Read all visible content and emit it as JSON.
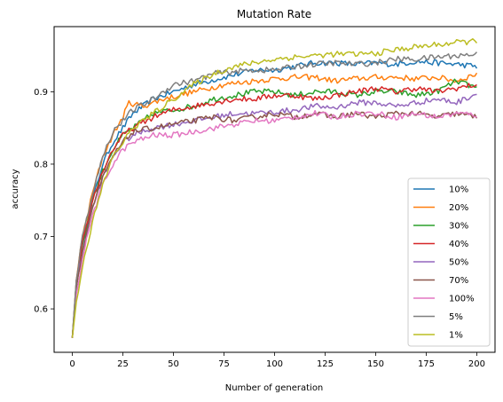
{
  "chart_data": {
    "type": "line",
    "title": "Mutation Rate",
    "xlabel": "Number of generation",
    "ylabel": "accuracy",
    "xlim": [
      -9,
      209
    ],
    "ylim": [
      0.54,
      0.99
    ],
    "xticks": [
      0,
      25,
      50,
      75,
      100,
      125,
      150,
      175,
      200
    ],
    "yticks": [
      0.6,
      0.7,
      0.8,
      0.9
    ],
    "grid": false,
    "legend_position": "lower right",
    "series": [
      {
        "name": "10%",
        "color": "#1f77b4",
        "points": [
          [
            0,
            0.56
          ],
          [
            2,
            0.64
          ],
          [
            5,
            0.69
          ],
          [
            10,
            0.75
          ],
          [
            15,
            0.8
          ],
          [
            20,
            0.83
          ],
          [
            25,
            0.85
          ],
          [
            30,
            0.87
          ],
          [
            40,
            0.89
          ],
          [
            50,
            0.9
          ],
          [
            60,
            0.91
          ],
          [
            75,
            0.92
          ],
          [
            90,
            0.93
          ],
          [
            100,
            0.93
          ],
          [
            110,
            0.935
          ],
          [
            120,
            0.94
          ],
          [
            130,
            0.94
          ],
          [
            140,
            0.938
          ],
          [
            150,
            0.94
          ],
          [
            160,
            0.938
          ],
          [
            170,
            0.942
          ],
          [
            180,
            0.94
          ],
          [
            190,
            0.938
          ],
          [
            200,
            0.935
          ]
        ]
      },
      {
        "name": "20%",
        "color": "#ff7f0e",
        "points": [
          [
            0,
            0.56
          ],
          [
            2,
            0.64
          ],
          [
            5,
            0.7
          ],
          [
            10,
            0.76
          ],
          [
            15,
            0.81
          ],
          [
            20,
            0.84
          ],
          [
            25,
            0.865
          ],
          [
            28,
            0.885
          ],
          [
            35,
            0.88
          ],
          [
            45,
            0.89
          ],
          [
            60,
            0.9
          ],
          [
            75,
            0.91
          ],
          [
            90,
            0.915
          ],
          [
            100,
            0.918
          ],
          [
            110,
            0.92
          ],
          [
            120,
            0.92
          ],
          [
            130,
            0.915
          ],
          [
            140,
            0.918
          ],
          [
            150,
            0.92
          ],
          [
            160,
            0.92
          ],
          [
            170,
            0.918
          ],
          [
            180,
            0.92
          ],
          [
            190,
            0.915
          ],
          [
            200,
            0.925
          ]
        ]
      },
      {
        "name": "30%",
        "color": "#2ca02c",
        "points": [
          [
            0,
            0.56
          ],
          [
            2,
            0.63
          ],
          [
            5,
            0.69
          ],
          [
            10,
            0.75
          ],
          [
            15,
            0.79
          ],
          [
            20,
            0.82
          ],
          [
            25,
            0.84
          ],
          [
            30,
            0.85
          ],
          [
            40,
            0.87
          ],
          [
            50,
            0.875
          ],
          [
            60,
            0.88
          ],
          [
            70,
            0.89
          ],
          [
            80,
            0.895
          ],
          [
            90,
            0.9
          ],
          [
            100,
            0.9
          ],
          [
            110,
            0.895
          ],
          [
            120,
            0.9
          ],
          [
            130,
            0.9
          ],
          [
            140,
            0.895
          ],
          [
            150,
            0.9
          ],
          [
            160,
            0.9
          ],
          [
            170,
            0.895
          ],
          [
            180,
            0.9
          ],
          [
            190,
            0.915
          ],
          [
            200,
            0.905
          ]
        ]
      },
      {
        "name": "40%",
        "color": "#d62728",
        "points": [
          [
            0,
            0.56
          ],
          [
            2,
            0.63
          ],
          [
            5,
            0.69
          ],
          [
            10,
            0.75
          ],
          [
            15,
            0.79
          ],
          [
            20,
            0.82
          ],
          [
            25,
            0.84
          ],
          [
            30,
            0.85
          ],
          [
            40,
            0.865
          ],
          [
            50,
            0.875
          ],
          [
            60,
            0.88
          ],
          [
            70,
            0.885
          ],
          [
            80,
            0.89
          ],
          [
            90,
            0.89
          ],
          [
            100,
            0.895
          ],
          [
            110,
            0.895
          ],
          [
            120,
            0.89
          ],
          [
            130,
            0.895
          ],
          [
            140,
            0.9
          ],
          [
            150,
            0.905
          ],
          [
            160,
            0.9
          ],
          [
            170,
            0.905
          ],
          [
            180,
            0.9
          ],
          [
            190,
            0.905
          ],
          [
            200,
            0.91
          ]
        ]
      },
      {
        "name": "50%",
        "color": "#9467bd",
        "points": [
          [
            0,
            0.56
          ],
          [
            2,
            0.63
          ],
          [
            5,
            0.68
          ],
          [
            10,
            0.74
          ],
          [
            15,
            0.78
          ],
          [
            20,
            0.81
          ],
          [
            25,
            0.83
          ],
          [
            30,
            0.84
          ],
          [
            40,
            0.85
          ],
          [
            50,
            0.855
          ],
          [
            60,
            0.86
          ],
          [
            70,
            0.865
          ],
          [
            80,
            0.87
          ],
          [
            90,
            0.87
          ],
          [
            100,
            0.872
          ],
          [
            110,
            0.875
          ],
          [
            120,
            0.88
          ],
          [
            130,
            0.878
          ],
          [
            140,
            0.885
          ],
          [
            150,
            0.885
          ],
          [
            160,
            0.88
          ],
          [
            170,
            0.885
          ],
          [
            180,
            0.89
          ],
          [
            190,
            0.885
          ],
          [
            200,
            0.898
          ]
        ]
      },
      {
        "name": "70%",
        "color": "#8c564b",
        "points": [
          [
            0,
            0.56
          ],
          [
            2,
            0.63
          ],
          [
            5,
            0.68
          ],
          [
            10,
            0.74
          ],
          [
            15,
            0.78
          ],
          [
            20,
            0.81
          ],
          [
            25,
            0.83
          ],
          [
            30,
            0.845
          ],
          [
            40,
            0.85
          ],
          [
            50,
            0.855
          ],
          [
            60,
            0.86
          ],
          [
            70,
            0.865
          ],
          [
            80,
            0.86
          ],
          [
            90,
            0.865
          ],
          [
            100,
            0.87
          ],
          [
            110,
            0.865
          ],
          [
            120,
            0.87
          ],
          [
            130,
            0.865
          ],
          [
            140,
            0.87
          ],
          [
            150,
            0.865
          ],
          [
            160,
            0.87
          ],
          [
            170,
            0.87
          ],
          [
            180,
            0.865
          ],
          [
            190,
            0.87
          ],
          [
            200,
            0.865
          ]
        ]
      },
      {
        "name": "100%",
        "color": "#e377c2",
        "points": [
          [
            0,
            0.56
          ],
          [
            2,
            0.62
          ],
          [
            5,
            0.67
          ],
          [
            10,
            0.73
          ],
          [
            15,
            0.77
          ],
          [
            20,
            0.8
          ],
          [
            25,
            0.82
          ],
          [
            30,
            0.83
          ],
          [
            40,
            0.84
          ],
          [
            50,
            0.84
          ],
          [
            60,
            0.845
          ],
          [
            70,
            0.85
          ],
          [
            80,
            0.855
          ],
          [
            90,
            0.86
          ],
          [
            100,
            0.86
          ],
          [
            110,
            0.865
          ],
          [
            120,
            0.87
          ],
          [
            130,
            0.865
          ],
          [
            140,
            0.87
          ],
          [
            150,
            0.87
          ],
          [
            160,
            0.865
          ],
          [
            170,
            0.87
          ],
          [
            180,
            0.865
          ],
          [
            190,
            0.87
          ],
          [
            200,
            0.868
          ]
        ]
      },
      {
        "name": "5%",
        "color": "#7f7f7f",
        "points": [
          [
            0,
            0.56
          ],
          [
            2,
            0.64
          ],
          [
            5,
            0.7
          ],
          [
            10,
            0.76
          ],
          [
            15,
            0.81
          ],
          [
            20,
            0.845
          ],
          [
            25,
            0.86
          ],
          [
            30,
            0.875
          ],
          [
            40,
            0.89
          ],
          [
            50,
            0.91
          ],
          [
            60,
            0.915
          ],
          [
            70,
            0.925
          ],
          [
            80,
            0.928
          ],
          [
            90,
            0.93
          ],
          [
            100,
            0.93
          ],
          [
            110,
            0.935
          ],
          [
            120,
            0.938
          ],
          [
            130,
            0.94
          ],
          [
            140,
            0.938
          ],
          [
            150,
            0.94
          ],
          [
            160,
            0.945
          ],
          [
            170,
            0.945
          ],
          [
            180,
            0.948
          ],
          [
            190,
            0.95
          ],
          [
            200,
            0.952
          ]
        ]
      },
      {
        "name": "1%",
        "color": "#bcbd22",
        "points": [
          [
            0,
            0.56
          ],
          [
            2,
            0.61
          ],
          [
            5,
            0.66
          ],
          [
            10,
            0.72
          ],
          [
            15,
            0.77
          ],
          [
            20,
            0.81
          ],
          [
            25,
            0.83
          ],
          [
            30,
            0.85
          ],
          [
            40,
            0.87
          ],
          [
            50,
            0.89
          ],
          [
            60,
            0.91
          ],
          [
            70,
            0.925
          ],
          [
            80,
            0.935
          ],
          [
            90,
            0.94
          ],
          [
            100,
            0.945
          ],
          [
            110,
            0.948
          ],
          [
            120,
            0.95
          ],
          [
            130,
            0.952
          ],
          [
            140,
            0.952
          ],
          [
            150,
            0.953
          ],
          [
            160,
            0.958
          ],
          [
            170,
            0.962
          ],
          [
            180,
            0.965
          ],
          [
            190,
            0.968
          ],
          [
            200,
            0.97
          ]
        ]
      }
    ]
  }
}
